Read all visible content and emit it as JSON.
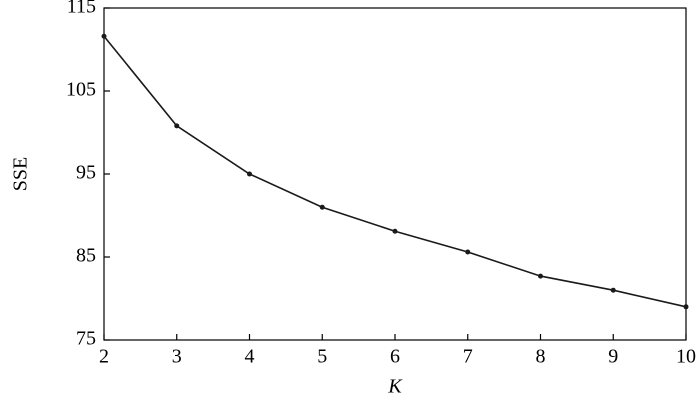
{
  "chart_data": {
    "type": "line",
    "x_label": "K",
    "y_label": "SSE",
    "x": [
      2,
      3,
      4,
      5,
      6,
      7,
      8,
      9,
      10
    ],
    "series": [
      {
        "color": "#1a1a1a",
        "values": [
          111.6,
          100.8,
          95.0,
          91.0,
          88.1,
          85.6,
          82.7,
          81.0,
          79.0
        ]
      }
    ],
    "xlim": [
      2,
      10
    ],
    "xticks": [
      2,
      3,
      4,
      5,
      6,
      7,
      8,
      9,
      10
    ],
    "ylim": [
      75,
      115
    ],
    "yticks": [
      75,
      85,
      95,
      105,
      115
    ],
    "grid": false,
    "markers": true
  }
}
